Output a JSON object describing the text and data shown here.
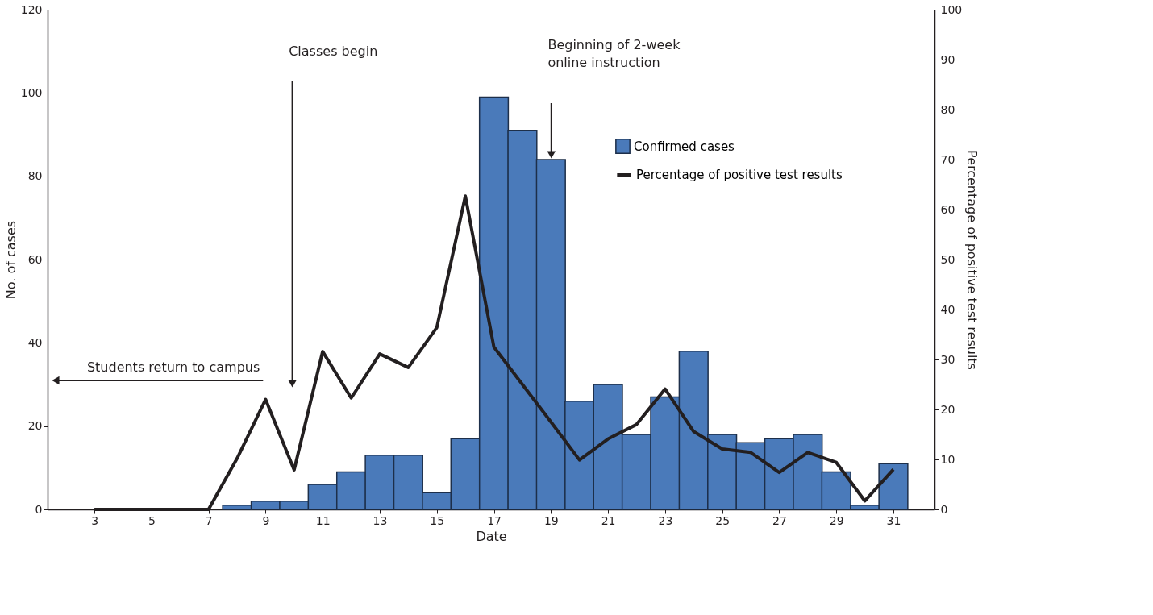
{
  "chart_data": {
    "type": "bar",
    "xlabel": "Date",
    "ylabel": "No. of cases",
    "y2label": "Percentage of positive test results",
    "xlim": [
      1.5,
      32.3
    ],
    "xticks": [
      3,
      5,
      7,
      9,
      11,
      13,
      15,
      17,
      19,
      21,
      23,
      25,
      27,
      29,
      31
    ],
    "ylim": [
      0,
      120
    ],
    "yticks": [
      0,
      20,
      40,
      60,
      80,
      100,
      120
    ],
    "y2lim": [
      0,
      100
    ],
    "y2ticks": [
      0,
      10,
      20,
      30,
      40,
      50,
      60,
      70,
      80,
      90,
      100
    ],
    "grid": false,
    "legend": "top right",
    "series": [
      {
        "name": "Confirmed cases",
        "type": "bar",
        "color": "#4a7aba",
        "x": [
          8,
          9,
          10,
          11,
          12,
          13,
          14,
          15,
          16,
          17,
          18,
          19,
          20,
          21,
          22,
          23,
          24,
          25,
          26,
          27,
          28,
          29,
          30,
          31
        ],
        "values": [
          1,
          2,
          2,
          6,
          9,
          13,
          13,
          4,
          17,
          99,
          91,
          84,
          26,
          30,
          18,
          27,
          38,
          18,
          16,
          17,
          18,
          9,
          1,
          11
        ]
      },
      {
        "name": "Percentage of positive test results",
        "type": "line",
        "axis": "y2",
        "color": "#231f20",
        "line_style": "solid",
        "marker": "none",
        "x": [
          3,
          4,
          5,
          6,
          7,
          8,
          9,
          10,
          11,
          12,
          13,
          14,
          15,
          16,
          17,
          18,
          19,
          20,
          21,
          22,
          23,
          24,
          25,
          26,
          27,
          28,
          29,
          30,
          31
        ],
        "values": [
          0,
          0,
          0,
          0,
          0,
          10.2,
          22,
          7.9,
          31.6,
          22.3,
          31.1,
          28.4,
          36.4,
          62.7,
          32.5,
          25,
          17.5,
          9.9,
          14.1,
          17,
          24.1,
          15.6,
          12.1,
          11.4,
          7.4,
          11.4,
          9.4,
          1.7,
          8
        ]
      }
    ],
    "annotations": [
      "Students return to campus",
      "Classes begin",
      "Beginning of 2-week online instruction"
    ]
  }
}
